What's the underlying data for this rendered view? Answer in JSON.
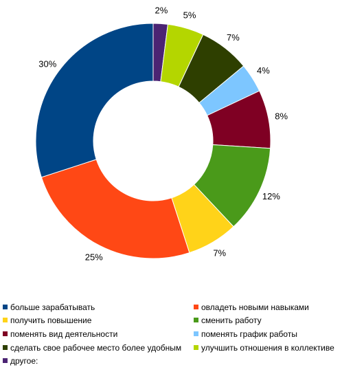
{
  "chart_data": {
    "type": "donut",
    "categories": [
      "другое:",
      "улучшить отношения в коллективе",
      "сделать свое рабочее место более удобным",
      "поменять график работы",
      "поменять вид деятельности",
      "сменить работу",
      "получить повышение",
      "овладеть новыми навыками",
      "больше зарабатывать"
    ],
    "values": [
      2,
      5,
      7,
      4,
      8,
      12,
      7,
      25,
      30
    ],
    "labels": [
      "2%",
      "5%",
      "7%",
      "4%",
      "8%",
      "12%",
      "7%",
      "25%",
      "30%"
    ],
    "colors": [
      "#4B2473",
      "#B4D600",
      "#2E3F00",
      "#7DC6FF",
      "#7F0023",
      "#4A9A1A",
      "#FFD319",
      "#FF4815",
      "#004586"
    ],
    "legend_position": "bottom"
  },
  "legend": {
    "items": [
      {
        "label": "больше зарабатывать",
        "color": "#004586"
      },
      {
        "label": "овладеть новыми навыками",
        "color": "#FF4815"
      },
      {
        "label": "получить повышение",
        "color": "#FFD319"
      },
      {
        "label": "сменить работу",
        "color": "#4A9A1A"
      },
      {
        "label": "поменять вид деятельности",
        "color": "#7F0023"
      },
      {
        "label": "поменять график работы",
        "color": "#7DC6FF"
      },
      {
        "label": "сделать свое рабочее место более удобным",
        "color": "#2E3F00"
      },
      {
        "label": "улучшить отношения в коллективе",
        "color": "#B4D600"
      },
      {
        "label": "другое:",
        "color": "#4B2473"
      }
    ]
  }
}
